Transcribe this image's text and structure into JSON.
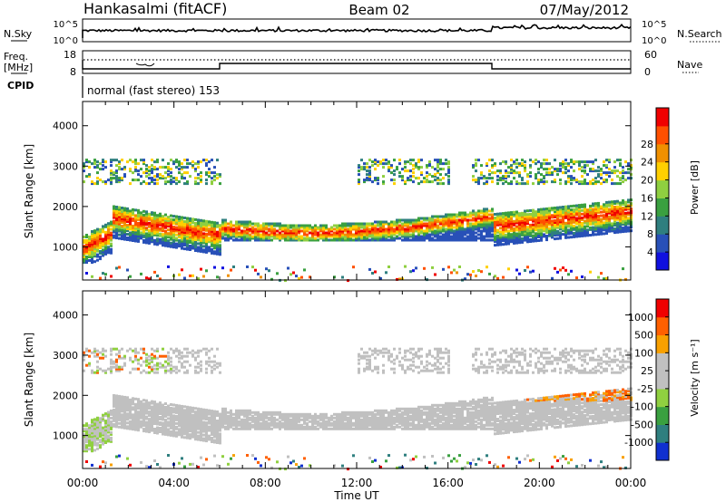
{
  "header": {
    "site": "Hankasalmi (fitACF)",
    "beam": "Beam 02",
    "date": "07/May/2012"
  },
  "strip": {
    "nsky_label": "N.Sky",
    "nsky_ticks": [
      "10^5",
      "10^0"
    ],
    "nsearch_label": "N.Search",
    "nsearch_ticks": [
      "10^5",
      "10^0"
    ],
    "freq_label_1": "Freq.",
    "freq_label_2": "[MHz]",
    "freq_ticks": [
      "18",
      "8"
    ],
    "nave_label": "Nave",
    "nave_ticks": [
      "60",
      "0"
    ],
    "cpid_label": "CPID",
    "mode_text": "normal (fast stereo) 153"
  },
  "chart_data": [
    {
      "type": "heatmap",
      "title": "",
      "ylabel": "Slant Range [km]",
      "xlabel": "",
      "x_ticks": [
        "00:00",
        "04:00",
        "08:00",
        "12:00",
        "16:00",
        "20:00",
        "00:00"
      ],
      "y_ticks": [
        "1000",
        "2000",
        "3000",
        "4000"
      ],
      "ylim": [
        180,
        4600
      ],
      "colorbar": {
        "label": "Power [dB]",
        "ticks": [
          "4",
          "8",
          "12",
          "16",
          "20",
          "24",
          "28"
        ],
        "colors": [
          "#1010e0",
          "#2850b8",
          "#2f7f7f",
          "#3aa040",
          "#8fcf40",
          "#ffd000",
          "#f09000",
          "#ff5000",
          "#f00000"
        ]
      }
    },
    {
      "type": "heatmap",
      "title": "",
      "ylabel": "Slant Range [km]",
      "xlabel": "Time UT",
      "x_ticks": [
        "00:00",
        "04:00",
        "08:00",
        "12:00",
        "16:00",
        "20:00",
        "00:00"
      ],
      "y_ticks": [
        "1000",
        "2000",
        "3000",
        "4000"
      ],
      "ylim": [
        180,
        4600
      ],
      "colorbar": {
        "label": "Velocity [m s⁻¹]",
        "ticks": [
          "1000",
          "500",
          "100",
          "25",
          "-25",
          "-100",
          "-500",
          "-1000"
        ],
        "colors": [
          "#1030d0",
          "#2f7f7f",
          "#3aa040",
          "#90d040",
          "#c0c0c0",
          "#c0c0c0",
          "#f8a000",
          "#ff6000",
          "#f00000"
        ]
      }
    }
  ]
}
